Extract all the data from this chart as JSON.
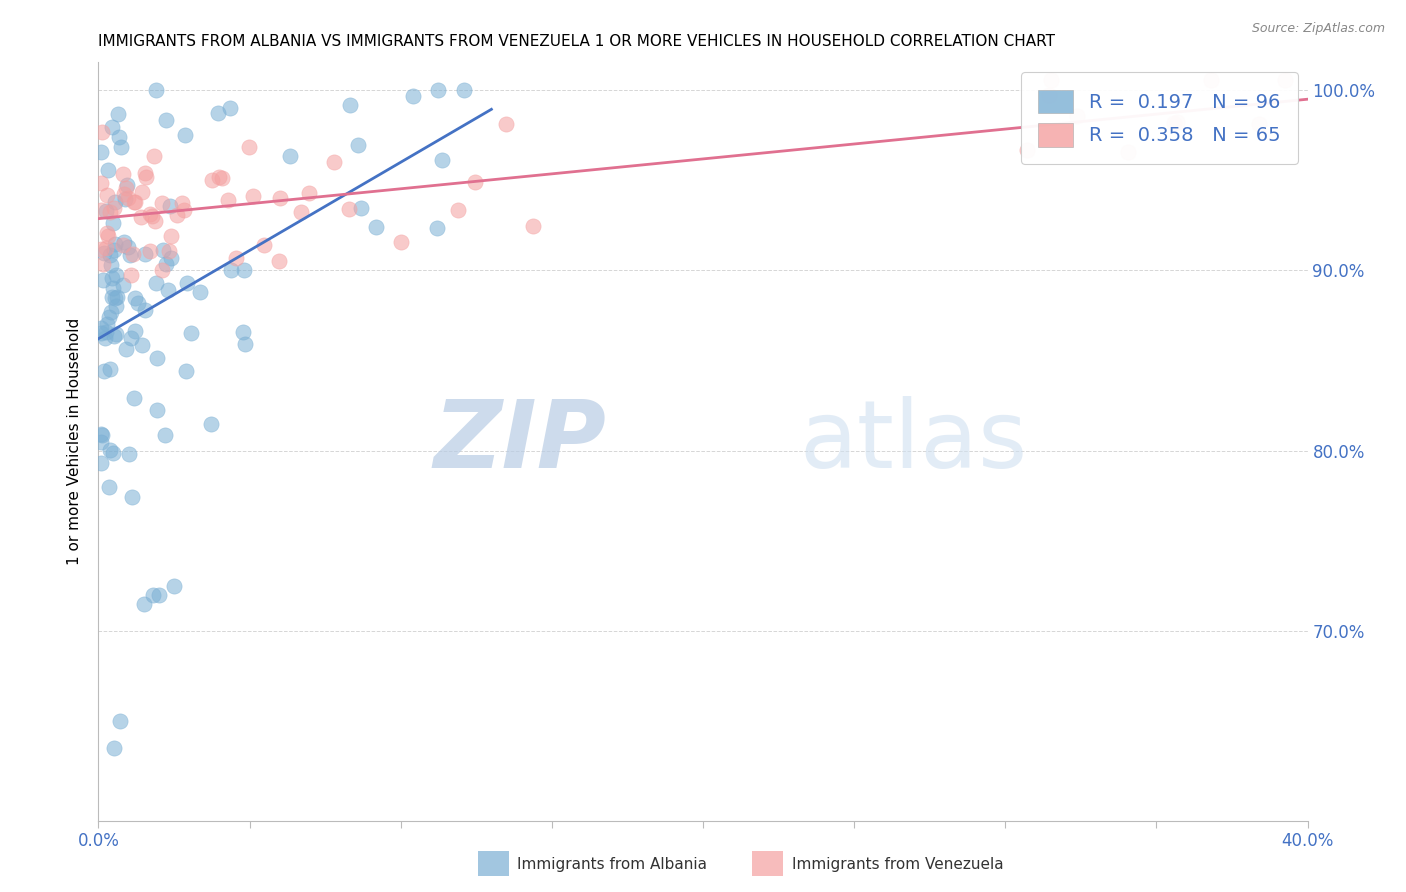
{
  "title": "IMMIGRANTS FROM ALBANIA VS IMMIGRANTS FROM VENEZUELA 1 OR MORE VEHICLES IN HOUSEHOLD CORRELATION CHART",
  "source": "Source: ZipAtlas.com",
  "ylabel": "1 or more Vehicles in Household",
  "xlim": [
    0.0,
    0.4
  ],
  "ylim": [
    0.595,
    1.015
  ],
  "yticks": [
    0.7,
    0.8,
    0.9,
    1.0
  ],
  "ytick_labels": [
    "70.0%",
    "80.0%",
    "90.0%",
    "100.0%"
  ],
  "xticks": [
    0.0,
    0.05,
    0.1,
    0.15,
    0.2,
    0.25,
    0.3,
    0.35,
    0.4
  ],
  "albania_color": "#7bafd4",
  "albania_line_color": "#4472c4",
  "venezuela_color": "#f4a0a0",
  "venezuela_line_color": "#e07090",
  "albania_R": 0.197,
  "albania_N": 96,
  "venezuela_R": 0.358,
  "venezuela_N": 65,
  "albania_label": "Immigrants from Albania",
  "venezuela_label": "Immigrants from Venezuela",
  "watermark_zip": "ZIP",
  "watermark_atlas": "atlas",
  "legend_fontsize": 14,
  "title_fontsize": 11
}
